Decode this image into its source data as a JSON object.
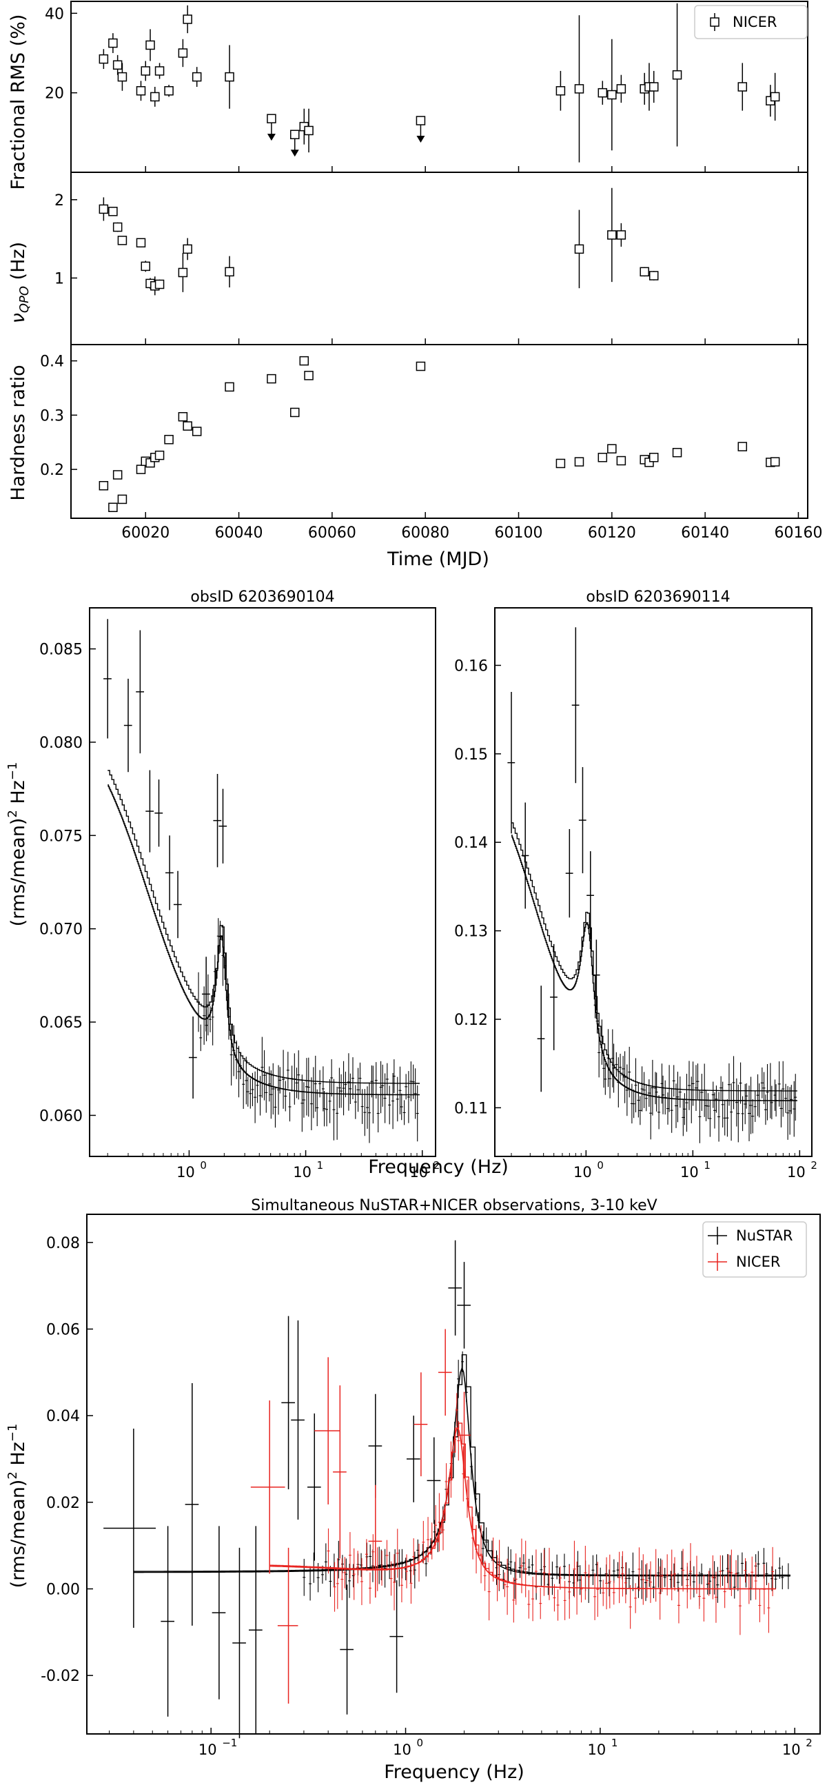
{
  "chart_data": [
    {
      "id": "rms",
      "type": "scatter",
      "ylabel": "Fractional RMS (%)",
      "xlim": [
        60004,
        60162
      ],
      "ylim": [
        0,
        43
      ],
      "yticks": [
        20,
        40
      ],
      "legend": {
        "position": "top-right",
        "entries": [
          "NICER"
        ]
      },
      "series": [
        {
          "name": "NICER",
          "marker": "open-square",
          "points": [
            {
              "x": 60011,
              "y": 28.5,
              "err": 2.5
            },
            {
              "x": 60013,
              "y": 32.5,
              "err": 2.5
            },
            {
              "x": 60014,
              "y": 27,
              "err": 2.5
            },
            {
              "x": 60015,
              "y": 24,
              "err": 3.5
            },
            {
              "x": 60019,
              "y": 20.5,
              "err": 2.5
            },
            {
              "x": 60020,
              "y": 25.5,
              "err": 2.5
            },
            {
              "x": 60021,
              "y": 32,
              "err": 4
            },
            {
              "x": 60022,
              "y": 19,
              "err": 2.5
            },
            {
              "x": 60023,
              "y": 25.5,
              "err": 2
            },
            {
              "x": 60025,
              "y": 20.5,
              "err": 1.5
            },
            {
              "x": 60028,
              "y": 30,
              "err": 3.5
            },
            {
              "x": 60029,
              "y": 38.5,
              "err": 3.5
            },
            {
              "x": 60031,
              "y": 24,
              "err": 2.5
            },
            {
              "x": 60038,
              "y": 24,
              "err": 8
            },
            {
              "x": 60047,
              "y": 13.5,
              "upper_limit": true
            },
            {
              "x": 60052,
              "y": 9.5,
              "upper_limit": true
            },
            {
              "x": 60054,
              "y": 11.5,
              "err": 4.5
            },
            {
              "x": 60055,
              "y": 10.5,
              "err": 5.5
            },
            {
              "x": 60079,
              "y": 13,
              "upper_limit": true
            },
            {
              "x": 60109,
              "y": 20.5,
              "err": 5
            },
            {
              "x": 60113,
              "y": 21,
              "err": 18.5
            },
            {
              "x": 60118,
              "y": 20,
              "err": 3
            },
            {
              "x": 60120,
              "y": 19.5,
              "err": 14
            },
            {
              "x": 60122,
              "y": 21,
              "err": 3.5
            },
            {
              "x": 60127,
              "y": 21,
              "err": 4
            },
            {
              "x": 60128,
              "y": 21.5,
              "err": 6
            },
            {
              "x": 60129,
              "y": 21.5,
              "err": 4
            },
            {
              "x": 60134,
              "y": 24.5,
              "err": 18
            },
            {
              "x": 60148,
              "y": 21.5,
              "err": 6
            },
            {
              "x": 60154,
              "y": 18,
              "err": 4
            },
            {
              "x": 60155,
              "y": 19,
              "err": 6
            }
          ]
        }
      ]
    },
    {
      "id": "qpo",
      "type": "scatter",
      "ylabel": "ν",
      "ylabel_sub": "QPO",
      "ylabel_unit": " (Hz)",
      "xlim": [
        60004,
        60162
      ],
      "ylim": [
        0.15,
        2.35
      ],
      "yticks": [
        1,
        2
      ],
      "series": [
        {
          "name": "NICER",
          "marker": "open-square",
          "points": [
            {
              "x": 60011,
              "y": 1.88,
              "err": 0.15
            },
            {
              "x": 60013,
              "y": 1.85,
              "err": 0.05
            },
            {
              "x": 60014,
              "y": 1.65,
              "err": 0.06
            },
            {
              "x": 60015,
              "y": 1.48,
              "err": 0.04
            },
            {
              "x": 60019,
              "y": 1.45,
              "err": 0.04
            },
            {
              "x": 60020,
              "y": 1.15,
              "err": 0.07
            },
            {
              "x": 60021,
              "y": 0.93,
              "err": 0.07
            },
            {
              "x": 60022,
              "y": 0.9,
              "err": 0.12
            },
            {
              "x": 60023,
              "y": 0.92,
              "err": 0.06
            },
            {
              "x": 60028,
              "y": 1.07,
              "err": 0.25
            },
            {
              "x": 60029,
              "y": 1.37,
              "err": 0.14
            },
            {
              "x": 60038,
              "y": 1.08,
              "err": 0.2
            },
            {
              "x": 60113,
              "y": 1.37,
              "err": 0.5
            },
            {
              "x": 60120,
              "y": 1.55,
              "err": 0.6
            },
            {
              "x": 60122,
              "y": 1.55,
              "err": 0.15
            },
            {
              "x": 60127,
              "y": 1.08,
              "err": 0.06
            },
            {
              "x": 60129,
              "y": 1.03,
              "err": 0.06
            }
          ]
        }
      ]
    },
    {
      "id": "hardness",
      "type": "scatter",
      "ylabel": "Hardness ratio",
      "xlabel": "Time (MJD)",
      "xlim": [
        60004,
        60162
      ],
      "ylim": [
        0.11,
        0.43
      ],
      "yticks": [
        0.2,
        0.3,
        0.4
      ],
      "ytick_labels": [
        "0.2",
        "0.3",
        "0.4"
      ],
      "xticks": [
        60020,
        60040,
        60060,
        60080,
        60100,
        60120,
        60140,
        60160
      ],
      "series": [
        {
          "name": "NICER",
          "marker": "open-square",
          "points": [
            {
              "x": 60011,
              "y": 0.17
            },
            {
              "x": 60013,
              "y": 0.13
            },
            {
              "x": 60014,
              "y": 0.19
            },
            {
              "x": 60015,
              "y": 0.145
            },
            {
              "x": 60019,
              "y": 0.2
            },
            {
              "x": 60020,
              "y": 0.215
            },
            {
              "x": 60021,
              "y": 0.212
            },
            {
              "x": 60022,
              "y": 0.222
            },
            {
              "x": 60023,
              "y": 0.226
            },
            {
              "x": 60025,
              "y": 0.255
            },
            {
              "x": 60028,
              "y": 0.297
            },
            {
              "x": 60029,
              "y": 0.28
            },
            {
              "x": 60031,
              "y": 0.27
            },
            {
              "x": 60038,
              "y": 0.352
            },
            {
              "x": 60047,
              "y": 0.367
            },
            {
              "x": 60052,
              "y": 0.305
            },
            {
              "x": 60054,
              "y": 0.4
            },
            {
              "x": 60055,
              "y": 0.373
            },
            {
              "x": 60079,
              "y": 0.39
            },
            {
              "x": 60109,
              "y": 0.211
            },
            {
              "x": 60113,
              "y": 0.214
            },
            {
              "x": 60118,
              "y": 0.222
            },
            {
              "x": 60120,
              "y": 0.238
            },
            {
              "x": 60122,
              "y": 0.216
            },
            {
              "x": 60127,
              "y": 0.218
            },
            {
              "x": 60128,
              "y": 0.213
            },
            {
              "x": 60129,
              "y": 0.222
            },
            {
              "x": 60134,
              "y": 0.231
            },
            {
              "x": 60148,
              "y": 0.242
            },
            {
              "x": 60154,
              "y": 0.213
            },
            {
              "x": 60155,
              "y": 0.214
            }
          ]
        }
      ]
    },
    {
      "id": "pds1",
      "type": "line",
      "title": "obsID 6203690104",
      "ylabel": "(rms/mean)",
      "ylabel_sup": "2",
      "ylabel_unit": " Hz",
      "ylabel_unit_sup": "−1",
      "xscale": "log",
      "xlim": [
        0.14,
        130
      ],
      "ylim": [
        0.0578,
        0.0872
      ],
      "yticks": [
        0.06,
        0.065,
        0.07,
        0.075,
        0.08,
        0.085
      ],
      "ytick_labels": [
        "0.060",
        "0.065",
        "0.070",
        "0.075",
        "0.080",
        "0.085"
      ],
      "model": {
        "base": 0.0611,
        "qpo_f": 1.88,
        "qpo_w": 0.22,
        "qpo_a": 0.0066,
        "low_a": 0.021,
        "low_w": 0.45,
        "low_s": 1.6,
        "freq_range": [
          0.2,
          95
        ]
      },
      "scatter": 0.0011,
      "points": [
        {
          "x": 0.2,
          "y": 0.0834,
          "err": 0.0032
        },
        {
          "x": 0.3,
          "y": 0.0809,
          "err": 0.0025
        },
        {
          "x": 0.38,
          "y": 0.0827,
          "err": 0.0033
        },
        {
          "x": 0.46,
          "y": 0.0763,
          "err": 0.0022
        },
        {
          "x": 0.55,
          "y": 0.0762,
          "err": 0.0018
        },
        {
          "x": 0.68,
          "y": 0.073,
          "err": 0.002
        },
        {
          "x": 0.8,
          "y": 0.0713,
          "err": 0.0018
        },
        {
          "x": 1.08,
          "y": 0.0631,
          "err": 0.0022
        },
        {
          "x": 1.4,
          "y": 0.0665,
          "err": 0.002
        },
        {
          "x": 1.75,
          "y": 0.0758,
          "err": 0.0025
        },
        {
          "x": 1.95,
          "y": 0.0755,
          "err": 0.002
        }
      ]
    },
    {
      "id": "pds2",
      "type": "line",
      "title": "obsID 6203690114",
      "xscale": "log",
      "xlim": [
        0.14,
        130
      ],
      "ylim": [
        0.1045,
        0.1665
      ],
      "yticks": [
        0.11,
        0.12,
        0.13,
        0.14,
        0.15,
        0.16
      ],
      "ytick_labels": [
        "0.11",
        "0.12",
        "0.13",
        "0.14",
        "0.15",
        "0.16"
      ],
      "model": {
        "base": 0.1108,
        "qpo_f": 1.02,
        "qpo_w": 0.18,
        "qpo_a": 0.015,
        "low_a": 0.04,
        "low_w": 0.35,
        "low_s": 1.8,
        "freq_range": [
          0.2,
          95
        ]
      },
      "scatter": 0.0022,
      "points": [
        {
          "x": 0.2,
          "y": 0.149,
          "err": 0.008
        },
        {
          "x": 0.27,
          "y": 0.1385,
          "err": 0.006
        },
        {
          "x": 0.38,
          "y": 0.1178,
          "err": 0.006
        },
        {
          "x": 0.5,
          "y": 0.1225,
          "err": 0.006
        },
        {
          "x": 0.7,
          "y": 0.1365,
          "err": 0.005
        },
        {
          "x": 0.8,
          "y": 0.1555,
          "err": 0.0088
        },
        {
          "x": 0.93,
          "y": 0.1425,
          "err": 0.006
        },
        {
          "x": 1.1,
          "y": 0.134,
          "err": 0.005
        },
        {
          "x": 1.25,
          "y": 0.125,
          "err": 0.004
        }
      ]
    },
    {
      "id": "pds3",
      "type": "line",
      "title": "Simultaneous NuSTAR+NICER observations, 3-10 keV",
      "ylabel": "(rms/mean)",
      "ylabel_sup": "2",
      "ylabel_unit": " Hz",
      "ylabel_unit_sup": "−1",
      "xlabel": "Frequency (Hz)",
      "xscale": "log",
      "xlim": [
        0.023,
        135
      ],
      "ylim": [
        -0.0335,
        0.0865
      ],
      "yticks": [
        -0.02,
        0,
        0.02,
        0.04,
        0.06,
        0.08
      ],
      "ytick_labels": [
        "-0.02",
        "0.00",
        "0.02",
        "0.04",
        "0.06",
        "0.08"
      ],
      "legend": {
        "position": "top-right",
        "entries": [
          "NuSTAR",
          "NICER"
        ]
      },
      "series": [
        {
          "name": "NuSTAR",
          "color": "#000000",
          "model": {
            "base": 0.0,
            "flat": 0.003,
            "qpo_f": 1.95,
            "qpo_w": 0.25,
            "qpo_a": 0.048,
            "freq_range": [
              0.04,
              95
            ]
          },
          "scatter": 0.003,
          "points": [
            {
              "x": 0.04,
              "y": 0.014,
              "err": 0.023,
              "xerr": 0.012
            },
            {
              "x": 0.06,
              "y": -0.0075,
              "err": 0.022
            },
            {
              "x": 0.08,
              "y": 0.0195,
              "err": 0.028
            },
            {
              "x": 0.11,
              "y": -0.0055,
              "err": 0.02
            },
            {
              "x": 0.14,
              "y": -0.0125,
              "err": 0.022
            },
            {
              "x": 0.17,
              "y": -0.0095,
              "err": 0.024
            },
            {
              "x": 0.25,
              "y": 0.043,
              "err": 0.02
            },
            {
              "x": 0.28,
              "y": 0.039,
              "err": 0.023
            },
            {
              "x": 0.34,
              "y": 0.0235,
              "err": 0.017
            },
            {
              "x": 0.5,
              "y": -0.014,
              "err": 0.015
            },
            {
              "x": 0.7,
              "y": 0.033,
              "err": 0.012
            },
            {
              "x": 0.9,
              "y": -0.011,
              "err": 0.013
            },
            {
              "x": 1.1,
              "y": 0.03,
              "err": 0.01
            },
            {
              "x": 1.4,
              "y": 0.025,
              "err": 0.01
            },
            {
              "x": 1.8,
              "y": 0.0695,
              "err": 0.011
            },
            {
              "x": 2.0,
              "y": 0.0655,
              "err": 0.01
            }
          ]
        },
        {
          "name": "NICER",
          "color": "#e8231f",
          "model": {
            "base": 0.0,
            "flat": 0.0,
            "low_a": 0.005,
            "low_w": 0.8,
            "low_s": 1.5,
            "qpo_f": 1.85,
            "qpo_w": 0.25,
            "qpo_a": 0.036,
            "freq_range": [
              0.2,
              80
            ]
          },
          "scatter": 0.0045,
          "points": [
            {
              "x": 0.2,
              "y": 0.0235,
              "err": 0.02,
              "xerr": 0.04
            },
            {
              "x": 0.25,
              "y": -0.0085,
              "err": 0.018,
              "xerr": 0.03
            },
            {
              "x": 0.4,
              "y": 0.0365,
              "err": 0.017,
              "xerr": 0.06
            },
            {
              "x": 0.46,
              "y": 0.027,
              "err": 0.02
            },
            {
              "x": 0.7,
              "y": 0.011,
              "err": 0.013
            },
            {
              "x": 1.2,
              "y": 0.038,
              "err": 0.012
            },
            {
              "x": 1.6,
              "y": 0.05,
              "err": 0.01
            },
            {
              "x": 2.0,
              "y": 0.0355,
              "err": 0.01
            }
          ]
        }
      ]
    }
  ],
  "pds_axes": {
    "xlabel": "Frequency (Hz)",
    "xtick_labels": [
      "10",
      "10",
      "10"
    ],
    "xtick_exps": [
      "0",
      "1",
      "2"
    ],
    "xtick_labels3": [
      "10",
      "10",
      "10",
      "10"
    ],
    "xtick_exps3": [
      "−1",
      "0",
      "1",
      "2"
    ]
  }
}
